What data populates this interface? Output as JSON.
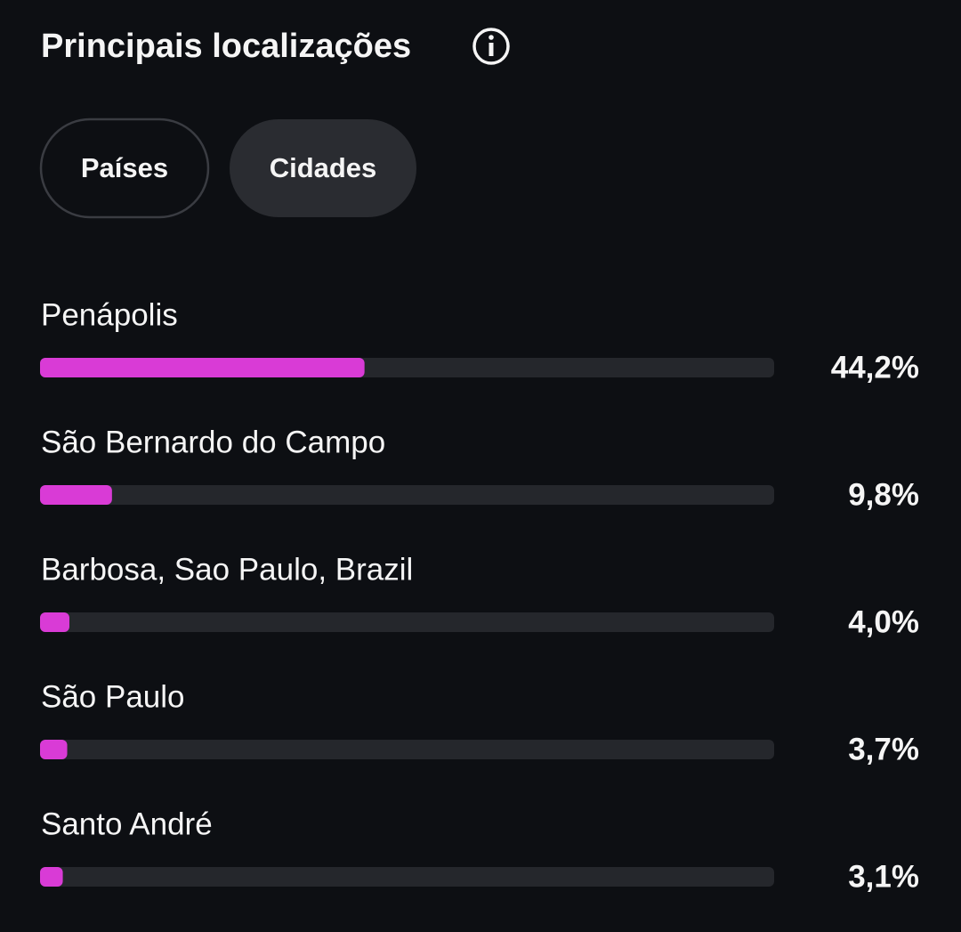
{
  "header": {
    "title": "Principais localizações"
  },
  "tabs": [
    "Países",
    "Cidades"
  ],
  "chart_data": {
    "type": "bar",
    "orientation": "horizontal",
    "categories": [
      "Penápolis",
      "São Bernardo do Campo",
      "Barbosa, Sao Paulo, Brazil",
      "São Paulo",
      "Santo André"
    ],
    "values": [
      44.2,
      9.8,
      4.0,
      3.7,
      3.1
    ],
    "value_labels": [
      "44,2%",
      "9,8%",
      "4,0%",
      "3,7%",
      "3,1%"
    ],
    "color": "#d93bd6",
    "xlim": [
      0,
      100
    ]
  }
}
